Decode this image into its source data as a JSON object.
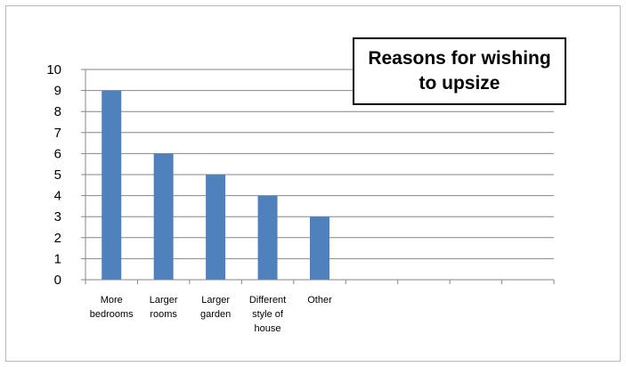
{
  "chart_data": {
    "type": "bar",
    "title": "Reasons for wishing to upsize",
    "categories": [
      "More bedrooms",
      "Larger rooms",
      "Larger garden",
      "Different style of house",
      "Other",
      "",
      "",
      "",
      ""
    ],
    "values": [
      9,
      6,
      5,
      4,
      3,
      null,
      null,
      null,
      null
    ],
    "xlabel": "",
    "ylabel": "",
    "ylim": [
      0,
      10
    ],
    "yticks": [
      "0",
      "1",
      "2",
      "3",
      "4",
      "5",
      "6",
      "7",
      "8",
      "9",
      "10"
    ],
    "grid": true,
    "legend": "none",
    "bar_color": "#4f81bd",
    "grid_color": "#868686"
  }
}
